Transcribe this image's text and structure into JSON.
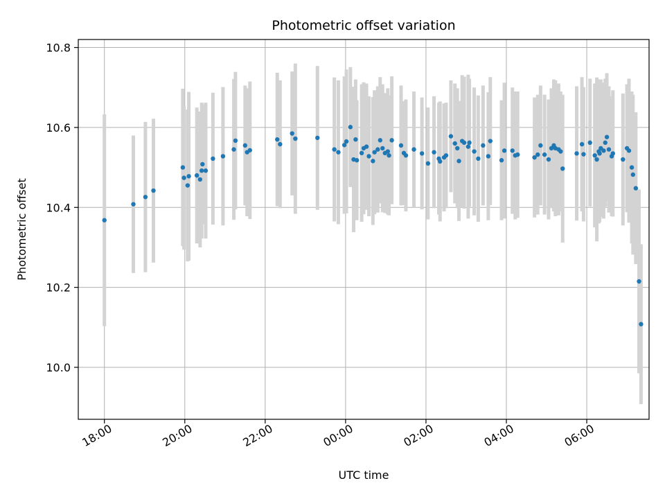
{
  "chart_data": {
    "type": "scatter",
    "title": "Photometric offset variation",
    "xlabel": "UTC time",
    "ylabel": "Photometric offset",
    "x_unit": "hours (UTC, continuing past midnight)",
    "xlim": [
      17.35,
      31.55
    ],
    "ylim": [
      9.87,
      10.82
    ],
    "x_ticks": [
      {
        "value": 18,
        "label": "18:00"
      },
      {
        "value": 20,
        "label": "20:00"
      },
      {
        "value": 22,
        "label": "22:00"
      },
      {
        "value": 24,
        "label": "00:00"
      },
      {
        "value": 26,
        "label": "02:00"
      },
      {
        "value": 28,
        "label": "04:00"
      },
      {
        "value": 30,
        "label": "06:00"
      }
    ],
    "y_ticks": [
      {
        "value": 10.0,
        "label": "10.0"
      },
      {
        "value": 10.2,
        "label": "10.2"
      },
      {
        "value": 10.4,
        "label": "10.4"
      },
      {
        "value": 10.6,
        "label": "10.6"
      },
      {
        "value": 10.8,
        "label": "10.8"
      }
    ],
    "grid": true,
    "colors": {
      "points": "#1f77b4",
      "errorbars": "#d3d3d3",
      "grid": "#b0b0b0"
    },
    "points": [
      [
        18.0,
        10.368,
        0.265
      ],
      [
        18.72,
        10.408,
        0.172
      ],
      [
        19.02,
        10.426,
        0.188
      ],
      [
        19.22,
        10.442,
        0.18
      ],
      [
        19.95,
        10.5,
        0.197
      ],
      [
        19.98,
        10.474,
        0.18
      ],
      [
        20.07,
        10.455,
        0.19
      ],
      [
        20.1,
        10.478,
        0.211
      ],
      [
        20.3,
        10.48,
        0.17
      ],
      [
        20.38,
        10.47,
        0.17
      ],
      [
        20.42,
        10.492,
        0.17
      ],
      [
        20.44,
        10.508,
        0.15
      ],
      [
        20.52,
        10.492,
        0.17
      ],
      [
        20.7,
        10.522,
        0.165
      ],
      [
        20.95,
        10.528,
        0.173
      ],
      [
        21.22,
        10.545,
        0.176
      ],
      [
        21.26,
        10.567,
        0.172
      ],
      [
        21.5,
        10.555,
        0.15
      ],
      [
        21.55,
        10.538,
        0.16
      ],
      [
        21.62,
        10.543,
        0.172
      ],
      [
        22.3,
        10.57,
        0.167
      ],
      [
        22.37,
        10.558,
        0.16
      ],
      [
        22.67,
        10.585,
        0.155
      ],
      [
        22.75,
        10.572,
        0.188
      ],
      [
        23.3,
        10.574,
        0.18
      ],
      [
        23.72,
        10.545,
        0.18
      ],
      [
        23.82,
        10.538,
        0.18
      ],
      [
        23.97,
        10.556,
        0.172
      ],
      [
        24.02,
        10.565,
        0.18
      ],
      [
        24.12,
        10.601,
        0.15
      ],
      [
        24.2,
        10.52,
        0.182
      ],
      [
        24.25,
        10.57,
        0.15
      ],
      [
        24.28,
        10.518,
        0.15
      ],
      [
        24.4,
        10.536,
        0.172
      ],
      [
        24.45,
        10.548,
        0.165
      ],
      [
        24.52,
        10.552,
        0.158
      ],
      [
        24.58,
        10.528,
        0.15
      ],
      [
        24.68,
        10.516,
        0.16
      ],
      [
        24.72,
        10.538,
        0.155
      ],
      [
        24.8,
        10.545,
        0.158
      ],
      [
        24.86,
        10.568,
        0.158
      ],
      [
        24.92,
        10.548,
        0.16
      ],
      [
        24.98,
        10.536,
        0.15
      ],
      [
        25.05,
        10.54,
        0.158
      ],
      [
        25.08,
        10.53,
        0.15
      ],
      [
        25.15,
        10.568,
        0.16
      ],
      [
        25.38,
        10.555,
        0.15
      ],
      [
        25.45,
        10.536,
        0.13
      ],
      [
        25.5,
        10.53,
        0.14
      ],
      [
        25.7,
        10.545,
        0.145
      ],
      [
        25.9,
        10.535,
        0.14
      ],
      [
        26.05,
        10.51,
        0.14
      ],
      [
        26.2,
        10.538,
        0.14
      ],
      [
        26.32,
        10.522,
        0.14
      ],
      [
        26.35,
        10.515,
        0.15
      ],
      [
        26.45,
        10.525,
        0.135
      ],
      [
        26.5,
        10.53,
        0.132
      ],
      [
        26.62,
        10.578,
        0.14
      ],
      [
        26.72,
        10.56,
        0.15
      ],
      [
        26.78,
        10.548,
        0.15
      ],
      [
        26.82,
        10.516,
        0.15
      ],
      [
        26.9,
        10.566,
        0.165
      ],
      [
        26.95,
        10.562,
        0.165
      ],
      [
        27.05,
        10.552,
        0.18
      ],
      [
        27.08,
        10.562,
        0.16
      ],
      [
        27.2,
        10.54,
        0.16
      ],
      [
        27.3,
        10.522,
        0.158
      ],
      [
        27.42,
        10.555,
        0.15
      ],
      [
        27.55,
        10.528,
        0.16
      ],
      [
        27.6,
        10.566,
        0.16
      ],
      [
        27.88,
        10.518,
        0.15
      ],
      [
        27.95,
        10.542,
        0.17
      ],
      [
        28.15,
        10.542,
        0.158
      ],
      [
        28.22,
        10.53,
        0.16
      ],
      [
        28.28,
        10.532,
        0.158
      ],
      [
        28.7,
        10.525,
        0.15
      ],
      [
        28.78,
        10.532,
        0.15
      ],
      [
        28.85,
        10.555,
        0.15
      ],
      [
        28.95,
        10.532,
        0.15
      ],
      [
        29.05,
        10.52,
        0.15
      ],
      [
        29.12,
        10.548,
        0.15
      ],
      [
        29.18,
        10.555,
        0.165
      ],
      [
        29.22,
        10.548,
        0.17
      ],
      [
        29.3,
        10.545,
        0.165
      ],
      [
        29.35,
        10.54,
        0.15
      ],
      [
        29.4,
        10.497,
        0.185
      ],
      [
        29.75,
        10.535,
        0.168
      ],
      [
        29.88,
        10.558,
        0.168
      ],
      [
        29.92,
        10.533,
        0.168
      ],
      [
        30.08,
        10.562,
        0.16
      ],
      [
        30.2,
        10.53,
        0.18
      ],
      [
        30.25,
        10.52,
        0.205
      ],
      [
        30.3,
        10.54,
        0.18
      ],
      [
        30.32,
        10.535,
        0.172
      ],
      [
        30.35,
        10.548,
        0.172
      ],
      [
        30.42,
        10.542,
        0.17
      ],
      [
        30.46,
        10.562,
        0.16
      ],
      [
        30.5,
        10.576,
        0.16
      ],
      [
        30.55,
        10.545,
        0.158
      ],
      [
        30.62,
        10.528,
        0.15
      ],
      [
        30.65,
        10.535,
        0.158
      ],
      [
        30.9,
        10.52,
        0.165
      ],
      [
        31.0,
        10.548,
        0.16
      ],
      [
        31.05,
        10.542,
        0.18
      ],
      [
        31.12,
        10.5,
        0.19
      ],
      [
        31.15,
        10.482,
        0.2
      ],
      [
        31.22,
        10.448,
        0.19
      ],
      [
        31.3,
        10.215,
        0.23
      ],
      [
        31.35,
        10.108,
        0.2
      ]
    ]
  }
}
